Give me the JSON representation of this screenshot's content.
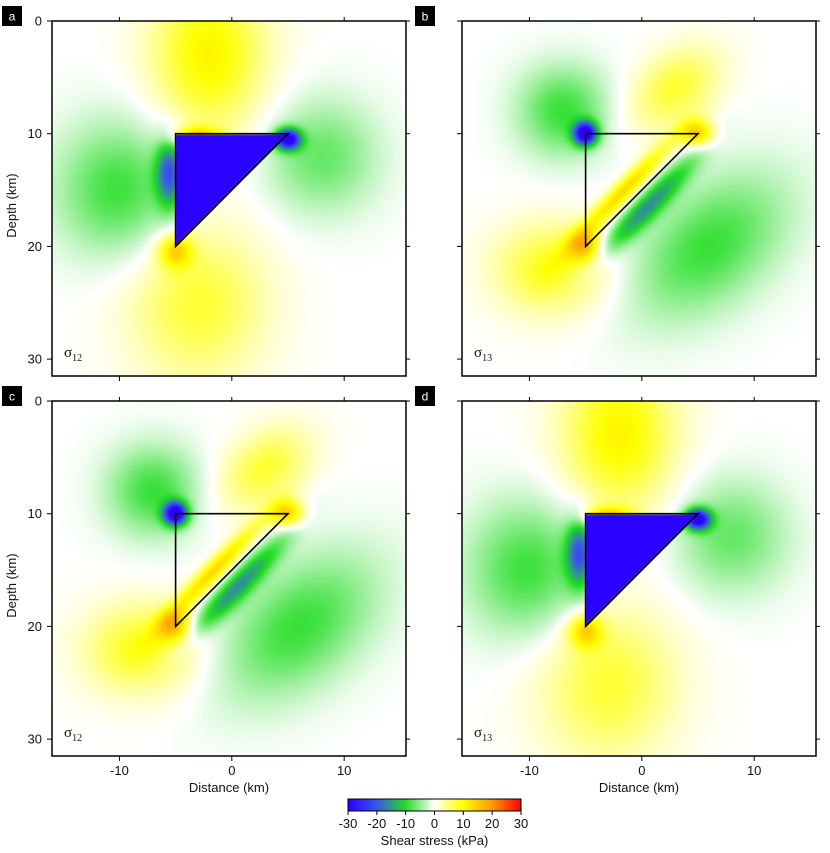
{
  "chart_data": {
    "type": "heatmap",
    "figure_description_none": null,
    "colorbar": {
      "title": "Shear stress (kPa)",
      "range": [
        -30,
        30
      ],
      "ticks": [
        -30,
        -20,
        -10,
        0,
        10,
        20,
        30
      ],
      "tick_labels": [
        "-30",
        "-20",
        "-10",
        "0",
        "10",
        "20",
        "30"
      ],
      "colormap": [
        {
          "value": -30,
          "color": "#2a00ff"
        },
        {
          "value": -20,
          "color": "#3a55ee"
        },
        {
          "value": -10,
          "color": "#22dd22"
        },
        {
          "value": 0,
          "color": "#ffffff"
        },
        {
          "value": 10,
          "color": "#ffff00"
        },
        {
          "value": 20,
          "color": "#ff9900"
        },
        {
          "value": 30,
          "color": "#ff0000"
        }
      ]
    },
    "x_axis": {
      "label": "Distance (km)",
      "range": [
        -16,
        15.5
      ],
      "ticks": [
        -10,
        0,
        10
      ],
      "tick_labels": [
        "-10",
        "0",
        "10"
      ]
    },
    "y_axis": {
      "label": "Depth (km)",
      "range": [
        0,
        31.5
      ],
      "ticks": [
        0,
        10,
        20,
        30
      ],
      "tick_labels": [
        "0",
        "10",
        "20",
        "30"
      ],
      "inverted": true
    },
    "triangle_vertices_km": [
      [
        -5,
        10
      ],
      [
        5,
        10
      ],
      [
        -5,
        20
      ]
    ],
    "panels": [
      {
        "tag": "a",
        "component": "12",
        "variant": "a"
      },
      {
        "tag": "b",
        "component": "13",
        "variant": "b"
      },
      {
        "tag": "c",
        "component": "12",
        "variant": "b"
      },
      {
        "tag": "d",
        "component": "13",
        "variant": "a"
      }
    ]
  },
  "labels": {
    "sigma": "σ",
    "panel_a": "a",
    "panel_b": "b",
    "panel_c": "c",
    "panel_d": "d",
    "comp_a": "12",
    "comp_b": "13",
    "comp_c": "12",
    "comp_d": "13"
  }
}
